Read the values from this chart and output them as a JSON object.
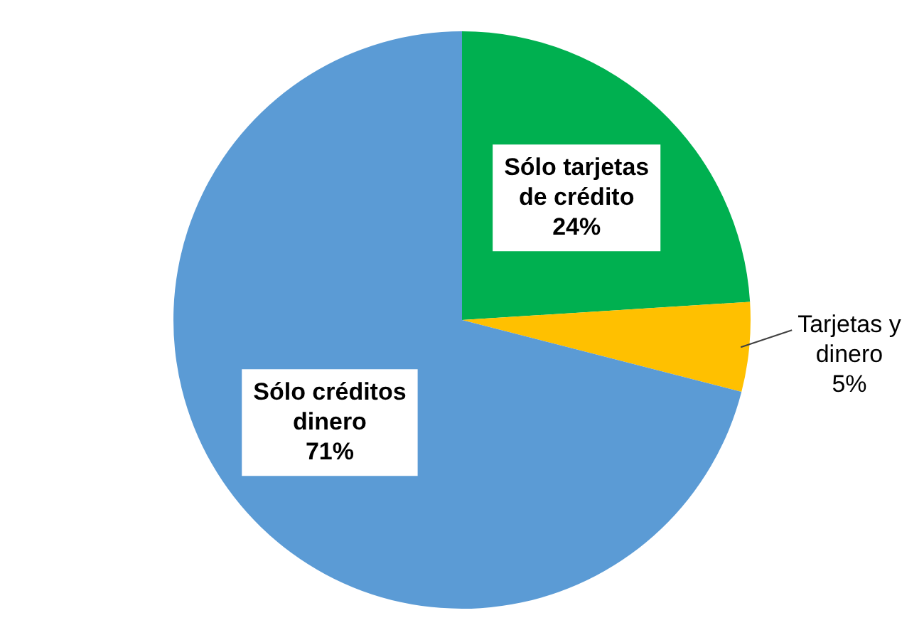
{
  "chart_data": {
    "type": "pie",
    "categories": [
      "Sólo tarjetas de crédito",
      "Tarjetas y dinero",
      "Sólo créditos dinero"
    ],
    "values": [
      24,
      5,
      71
    ],
    "colors": [
      "#00b050",
      "#ffc000",
      "#5b9bd5"
    ],
    "value_labels": [
      "24%",
      "5%",
      "71%"
    ],
    "legend": false
  }
}
